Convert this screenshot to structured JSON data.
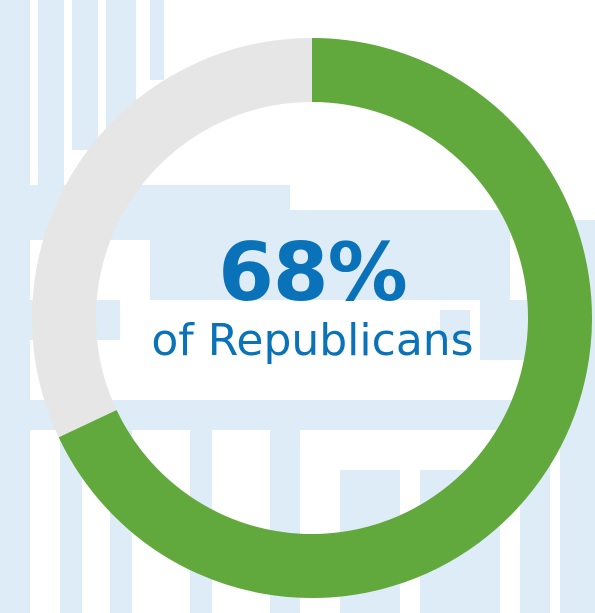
{
  "chart_data": {
    "type": "pie",
    "style": "donut",
    "segments": [
      {
        "value": 68,
        "color": "#62a93d"
      },
      {
        "value": 32,
        "color": "#e6e6e6"
      }
    ],
    "center_value": "68%",
    "center_label": "of Republicans"
  },
  "colors": {
    "accent": "#62a93d",
    "remainder": "#e6e6e6",
    "text": "#0a72b8",
    "background_pattern": "#deecf7"
  }
}
